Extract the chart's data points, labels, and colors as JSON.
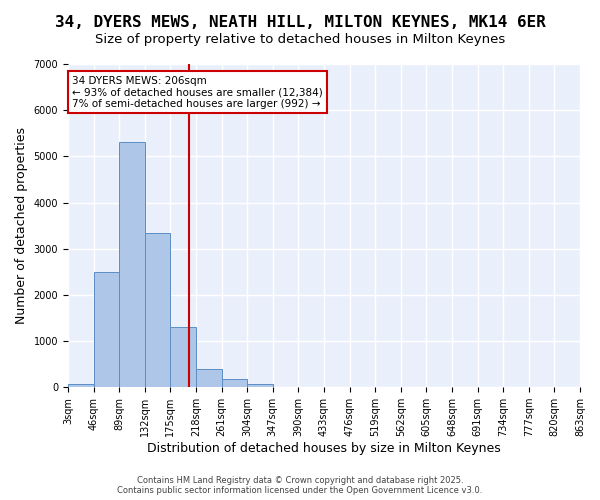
{
  "title1": "34, DYERS MEWS, NEATH HILL, MILTON KEYNES, MK14 6ER",
  "title2": "Size of property relative to detached houses in Milton Keynes",
  "xlabel": "Distribution of detached houses by size in Milton Keynes",
  "ylabel": "Number of detached properties",
  "bar_values": [
    75,
    2500,
    5300,
    3350,
    1300,
    400,
    175,
    60,
    10,
    0,
    0,
    0,
    0,
    0,
    0,
    0,
    0,
    0,
    0,
    0
  ],
  "categories": [
    "3sqm",
    "46sqm",
    "89sqm",
    "132sqm",
    "175sqm",
    "218sqm",
    "261sqm",
    "304sqm",
    "347sqm",
    "390sqm",
    "433sqm",
    "476sqm",
    "519sqm",
    "562sqm",
    "605sqm",
    "648sqm",
    "691sqm",
    "734sqm",
    "777sqm",
    "820sqm",
    "863sqm"
  ],
  "bar_color": "#aec6e8",
  "bar_edge_color": "#5b8ec4",
  "background_color": "#eaf0fb",
  "grid_color": "#ffffff",
  "vline_x": 4.72,
  "vline_color": "#cc0000",
  "annotation_text": "34 DYERS MEWS: 206sqm\n← 93% of detached houses are smaller (12,384)\n7% of semi-detached houses are larger (992) →",
  "annotation_box_color": "#cc0000",
  "ylim": [
    0,
    7000
  ],
  "yticks": [
    0,
    1000,
    2000,
    3000,
    4000,
    5000,
    6000,
    7000
  ],
  "footer_text": "Contains HM Land Registry data © Crown copyright and database right 2025.\nContains public sector information licensed under the Open Government Licence v3.0.",
  "title_fontsize": 11.5,
  "subtitle_fontsize": 9.5,
  "label_fontsize": 9,
  "tick_fontsize": 7
}
